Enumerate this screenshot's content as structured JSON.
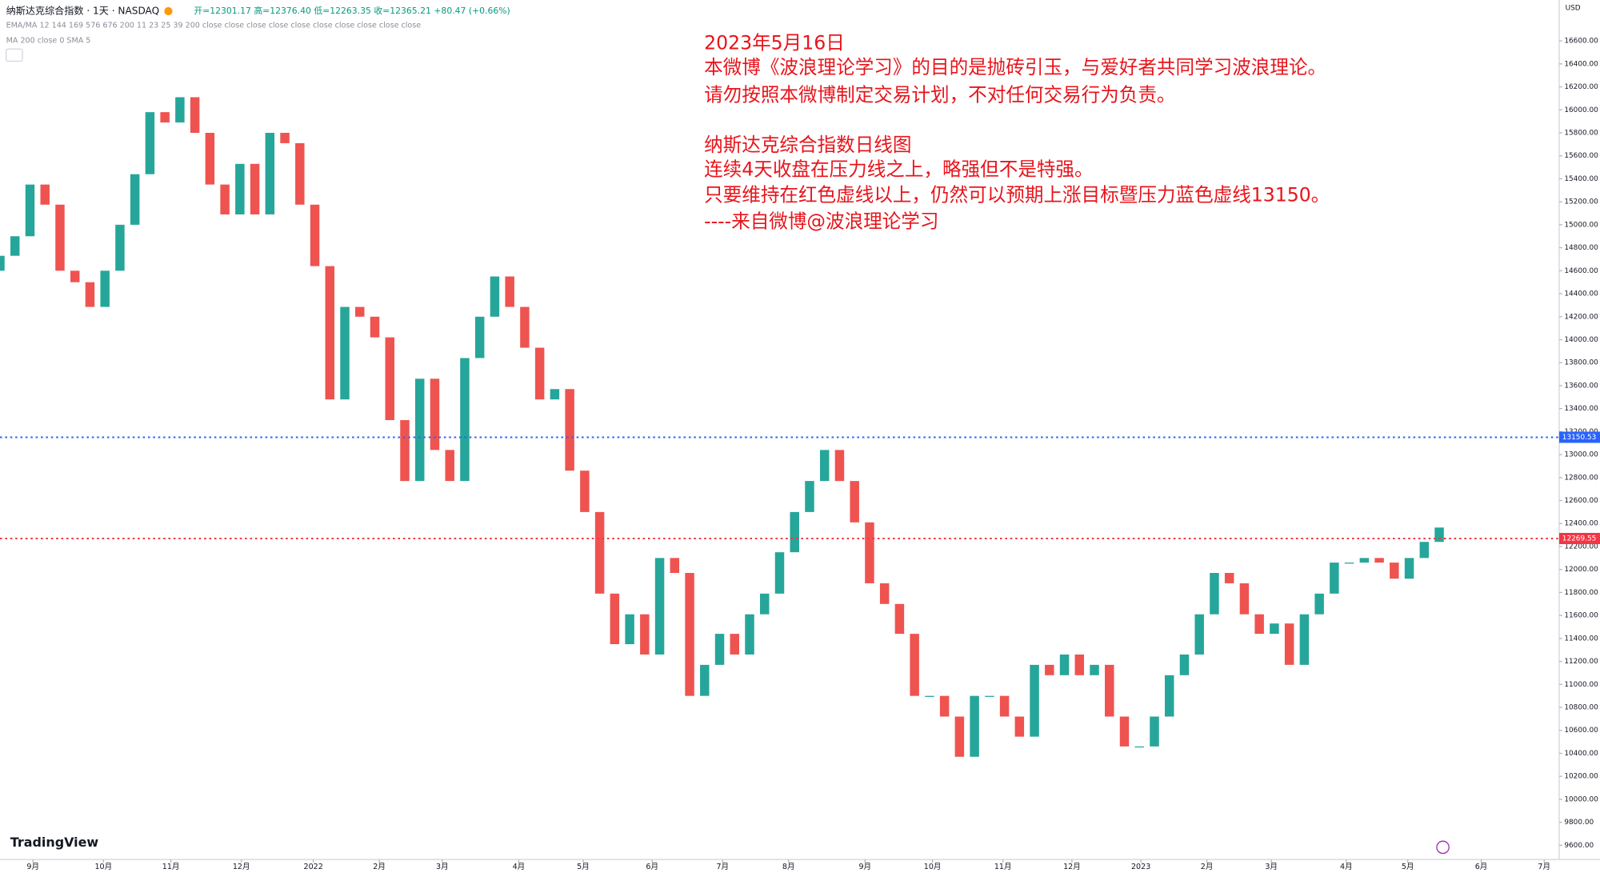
{
  "chart_data": {
    "type": "candlestick",
    "title": "纳斯达克综合指数 · 1天 · NASDAQ",
    "ohlc_text": "开=12301.17  高=12376.40  低=12263.35  收=12365.21  +80.47 (+0.66%)",
    "indicator_1": "EMA/MA 12 144 169 576 676 200 11 23 25 39 200 close close close close close close close close close close",
    "indicator_2": "MA 200 close 0 SMA 5",
    "currency": "USD",
    "logo": "TradingView",
    "annotations": [
      "2023年5月16日",
      "本微博《波浪理论学习》的目的是抛砖引玉，与爱好者共同学习波浪理论。",
      "请勿按照本微博制定交易计划，不对任何交易行为负责。",
      "纳斯达克综合指数日线图",
      "连续4天收盘在压力线之上，略强但不是特强。",
      "只要维持在红色虚线以上，仍然可以预期上涨目标暨压力蓝色虚线13150。",
      "----来自微博@波浪理论学习"
    ],
    "up_color": "#26a69a",
    "down_color": "#ef5350",
    "open": [
      14600,
      14730,
      14900,
      15350,
      15175,
      14600,
      14500,
      14285,
      14600,
      15000,
      15440,
      15980,
      15890,
      16110,
      15800,
      15350,
      15090,
      15530,
      15090,
      15800,
      15710,
      15175,
      14640,
      13480,
      14285,
      14200,
      14020,
      13300,
      12770,
      13660,
      13040,
      12770,
      13840,
      14200,
      14550,
      14285,
      13930,
      13480,
      13570,
      12860,
      12500,
      11790,
      11350,
      11610,
      11260,
      12100,
      11970,
      10900,
      11170,
      11440,
      11260,
      11610,
      11790,
      12150,
      12500,
      12770,
      13040,
      12770,
      12410,
      11880,
      11700,
      11440,
      10900,
      10900,
      10720,
      10370,
      10900,
      10900,
      10720,
      10545,
      11170,
      11080,
      11260,
      11080,
      11170,
      10720,
      10460,
      10460,
      10720,
      11080,
      11260,
      11610,
      11970,
      11880,
      11610,
      11440,
      11530,
      11170,
      11610,
      11790,
      12060,
      12060,
      12100,
      12060,
      11920,
      12100,
      12240
    ],
    "close": [
      14730,
      14900,
      15350,
      15175,
      14600,
      14500,
      14285,
      14600,
      15000,
      15440,
      15980,
      15890,
      16110,
      15800,
      15350,
      15090,
      15530,
      15090,
      15800,
      15710,
      15175,
      14640,
      13480,
      14285,
      14200,
      14020,
      13300,
      12770,
      13660,
      13040,
      12770,
      13840,
      14200,
      14550,
      14285,
      13930,
      13480,
      13570,
      12860,
      12500,
      11790,
      11350,
      11610,
      11260,
      12100,
      11970,
      10900,
      11170,
      11440,
      11260,
      11610,
      11790,
      12150,
      12500,
      12770,
      13040,
      12770,
      12410,
      11880,
      11700,
      11440,
      10900,
      10900,
      10720,
      10370,
      10900,
      10900,
      10720,
      10545,
      11170,
      11080,
      11260,
      11080,
      11170,
      10720,
      10460,
      10460,
      10720,
      11080,
      11260,
      11610,
      11970,
      11880,
      11610,
      11440,
      11530,
      11170,
      11610,
      11790,
      12060,
      12060,
      12100,
      12060,
      11920,
      12100,
      12240,
      12365
    ],
    "hlines": [
      {
        "value": 13150.53,
        "color": "#2962ff"
      },
      {
        "value": 12269.55,
        "color": "#f23645"
      }
    ],
    "xlim": [
      0,
      104
    ],
    "xticks": [
      {
        "value": 2.2,
        "label": "9月"
      },
      {
        "value": 6.9,
        "label": "10月"
      },
      {
        "value": 11.4,
        "label": "11月"
      },
      {
        "value": 16.1,
        "label": "12月"
      },
      {
        "value": 20.9,
        "label": "2022"
      },
      {
        "value": 25.3,
        "label": "2月"
      },
      {
        "value": 29.5,
        "label": "3月"
      },
      {
        "value": 34.6,
        "label": "4月"
      },
      {
        "value": 38.9,
        "label": "5月"
      },
      {
        "value": 43.5,
        "label": "6月"
      },
      {
        "value": 48.2,
        "label": "7月"
      },
      {
        "value": 52.6,
        "label": "8月"
      },
      {
        "value": 57.7,
        "label": "9月"
      },
      {
        "value": 62.2,
        "label": "10月"
      },
      {
        "value": 66.9,
        "label": "11月"
      },
      {
        "value": 71.5,
        "label": "12月"
      },
      {
        "value": 76.1,
        "label": "2023"
      },
      {
        "value": 80.5,
        "label": "2月"
      },
      {
        "value": 84.8,
        "label": "3月"
      },
      {
        "value": 89.8,
        "label": "4月"
      },
      {
        "value": 93.9,
        "label": "5月"
      },
      {
        "value": 98.8,
        "label": "6月"
      },
      {
        "value": 103.0,
        "label": "7月"
      }
    ],
    "ylim": [
      9476,
      16956
    ],
    "yticks": [
      {
        "value": 9600,
        "label": "9600.00"
      },
      {
        "value": 9800,
        "label": "9800.00"
      },
      {
        "value": 10000,
        "label": "10000.00"
      },
      {
        "value": 10200,
        "label": "10200.00"
      },
      {
        "value": 10400,
        "label": "10400.00"
      },
      {
        "value": 10600,
        "label": "10600.00"
      },
      {
        "value": 10800,
        "label": "10800.00"
      },
      {
        "value": 11000,
        "label": "11000.00"
      },
      {
        "value": 11200,
        "label": "11200.00"
      },
      {
        "value": 11400,
        "label": "11400.00"
      },
      {
        "value": 11600,
        "label": "11600.00"
      },
      {
        "value": 11800,
        "label": "11800.00"
      },
      {
        "value": 12000,
        "label": "12000.00"
      },
      {
        "value": 12200,
        "label": "12200.00"
      },
      {
        "value": 12400,
        "label": "12400.00"
      },
      {
        "value": 12600,
        "label": "12600.00"
      },
      {
        "value": 12800,
        "label": "12800.00"
      },
      {
        "value": 13000,
        "label": "13000.00"
      },
      {
        "value": 13200,
        "label": "13200.00"
      },
      {
        "value": 13400,
        "label": "13400.00"
      },
      {
        "value": 13600,
        "label": "13600.00"
      },
      {
        "value": 13800,
        "label": "13800.00"
      },
      {
        "value": 14000,
        "label": "14000.00"
      },
      {
        "value": 14200,
        "label": "14200.00"
      },
      {
        "value": 14400,
        "label": "14400.00"
      },
      {
        "value": 14600,
        "label": "14600.00"
      },
      {
        "value": 14800,
        "label": "14800.00"
      },
      {
        "value": 15000,
        "label": "15000.00"
      },
      {
        "value": 15200,
        "label": "15200.00"
      },
      {
        "value": 15400,
        "label": "15400.00"
      },
      {
        "value": 15600,
        "label": "15600.00"
      },
      {
        "value": 15800,
        "label": "15800.00"
      },
      {
        "value": 16000,
        "label": "16000.00"
      },
      {
        "value": 16200,
        "label": "16200.00"
      },
      {
        "value": 16400,
        "label": "16400.00"
      },
      {
        "value": 16600,
        "label": "16600.00"
      }
    ]
  }
}
